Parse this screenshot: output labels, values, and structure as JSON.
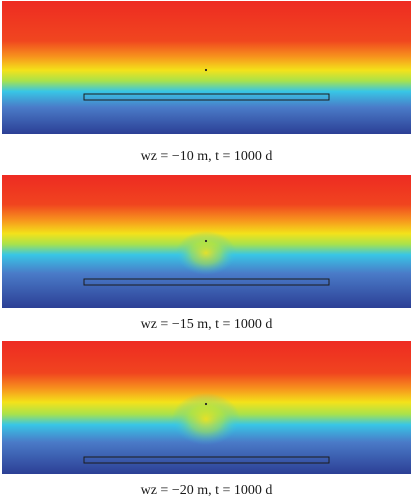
{
  "figure": {
    "panels": [
      {
        "caption": "wz = −10 m, t = 1000 d",
        "water_depth_m": 10,
        "time_d": 1000
      },
      {
        "caption": "wz = −15 m, t = 1000 d",
        "water_depth_m": 15,
        "time_d": 1000
      },
      {
        "caption": "wz = −20 m, t = 1000 d",
        "water_depth_m": 20,
        "time_d": 1000
      }
    ],
    "colormap": [
      "#8a1515",
      "#e6231f",
      "#f7921e",
      "#f4e61a",
      "#a6e34d",
      "#33c8e8",
      "#4a78c6",
      "#2b3f94"
    ]
  }
}
